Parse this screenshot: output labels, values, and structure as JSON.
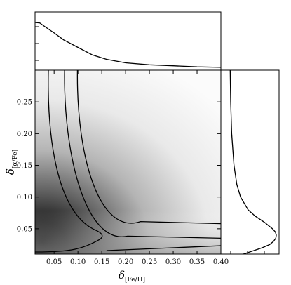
{
  "chart_data": {
    "type": "heatmap",
    "title": "",
    "xlabel": {
      "symbol": "δ",
      "subscript": "[Fe/H]"
    },
    "ylabel": {
      "symbol": "δ",
      "subscript": "[α/Fe]"
    },
    "xlim": [
      0.01,
      0.4
    ],
    "ylim": [
      0.01,
      0.3
    ],
    "x_ticks": [
      "0.05",
      "0.10",
      "0.15",
      "0.20",
      "0.25",
      "0.30",
      "0.35",
      "0.40"
    ],
    "y_ticks": [
      "0.05",
      "0.10",
      "0.15",
      "0.20",
      "0.25"
    ],
    "x_tick_values": [
      0.05,
      0.1,
      0.15,
      0.2,
      0.25,
      0.3,
      0.35,
      0.4
    ],
    "y_tick_values": [
      0.05,
      0.1,
      0.15,
      0.2,
      0.25
    ],
    "colormap": "gray_r",
    "density_peak": {
      "x": 0.01,
      "y": 0.04
    },
    "contours": [
      {
        "level": "inner",
        "x_asymptote": 0.038,
        "y_asymptote": 0.02,
        "x_max": 0.155,
        "y_at_x_max": 0.04
      },
      {
        "level": "middle",
        "x_asymptote": 0.072,
        "y_asymptote": 0.035,
        "x_max": 0.4,
        "y_at_x_max": 0.035
      },
      {
        "level": "outer",
        "x_asymptote": 0.099,
        "y_asymptote": 0.05,
        "x_max": 0.4,
        "y_at_x_max": 0.058
      }
    ],
    "top_marginal": {
      "x": [
        0.01,
        0.02,
        0.03,
        0.05,
        0.07,
        0.1,
        0.13,
        0.16,
        0.2,
        0.25,
        0.3,
        0.35,
        0.4
      ],
      "density": [
        0.93,
        0.92,
        0.85,
        0.72,
        0.58,
        0.43,
        0.28,
        0.19,
        0.12,
        0.08,
        0.06,
        0.04,
        0.03
      ]
    },
    "right_marginal": {
      "y": [
        0.01,
        0.015,
        0.02,
        0.025,
        0.03,
        0.035,
        0.04,
        0.045,
        0.05,
        0.06,
        0.07,
        0.08,
        0.1,
        0.12,
        0.15,
        0.2,
        0.25,
        0.3
      ],
      "density": [
        0.3,
        0.5,
        0.7,
        0.86,
        0.94,
        0.99,
        1.0,
        0.98,
        0.92,
        0.75,
        0.55,
        0.4,
        0.24,
        0.16,
        0.1,
        0.05,
        0.03,
        0.02
      ]
    }
  }
}
